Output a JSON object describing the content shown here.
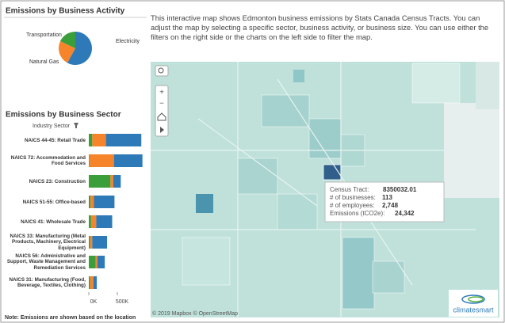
{
  "chart_data": [
    {
      "type": "pie",
      "title": "Emissions by Business Activity",
      "categories": [
        "Electricity",
        "Natural Gas",
        "Transportation"
      ],
      "values": [
        58,
        24,
        18
      ],
      "colors": [
        "#2e7ab8",
        "#f5842a",
        "#3a9e3a"
      ]
    },
    {
      "type": "bar",
      "orientation": "horizontal",
      "stacked": true,
      "title": "Emissions by Business Sector",
      "subtitle": "Industry Sector",
      "categories": [
        "NAICS 44-45: Retail Trade",
        "NAICS 72: Accommodation and Food Services",
        "NAICS 23: Construction",
        "NAICS 51-55: Office-based",
        "NAICS 41: Wholesale Trade",
        "NAICS 33: Manufacturing (Metal Products, Machinery, Electrical Equipment)",
        "NAICS 56: Administrative and Support, Waste Management and Remediation Services",
        "NAICS 31: Manufacturing (Food, Beverage, Textiles, Clothing)"
      ],
      "series": [
        {
          "name": "Transportation",
          "color": "#3a9e3a",
          "values": [
            60000,
            10000,
            380000,
            30000,
            40000,
            20000,
            120000,
            20000
          ]
        },
        {
          "name": "Natural Gas",
          "color": "#f5842a",
          "values": [
            240000,
            430000,
            50000,
            60000,
            90000,
            40000,
            30000,
            60000
          ]
        },
        {
          "name": "Electricity",
          "color": "#2e7ab8",
          "values": [
            620000,
            500000,
            130000,
            360000,
            280000,
            260000,
            130000,
            60000
          ]
        }
      ],
      "xlim": [
        0,
        1000000
      ],
      "xticks": [
        {
          "value": 0,
          "label": "0K"
        },
        {
          "value": 500000,
          "label": "500K"
        }
      ]
    }
  ],
  "description": "This interactive map shows Edmonton business emissions by Stats Canada Census Tracts. You can adjust the map by selecting a specific sector, business activity, or business size. You can use either the filters on the right side or the charts on the left side to filter the map.",
  "note": "Note: Emissions are shown based on the location",
  "map": {
    "attribution": "© 2019 Mapbox © OpenStreetMap",
    "logo": "climatesmart"
  },
  "tooltip": {
    "rows": [
      {
        "label": "Census Tract:",
        "value": "8350032.01"
      },
      {
        "label": "# of businesses:",
        "value": "113"
      },
      {
        "label": "# of employees:",
        "value": "2,748"
      },
      {
        "label": "Emissions (tCO2e):",
        "value": "24,342"
      }
    ]
  }
}
